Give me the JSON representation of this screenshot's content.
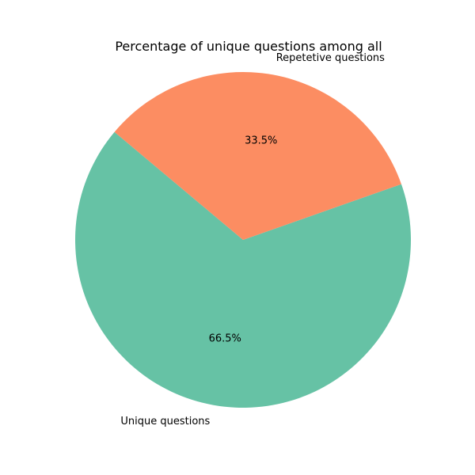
{
  "chart_data": {
    "type": "pie",
    "title": "Percentage of unique questions among all",
    "labels": [
      "Unique questions",
      "Repetetive questions"
    ],
    "values": [
      66.5,
      33.5
    ],
    "value_labels": [
      "66.5%",
      "33.5%"
    ],
    "colors": [
      "#66c2a5",
      "#fc8d62"
    ],
    "legend": "none"
  }
}
